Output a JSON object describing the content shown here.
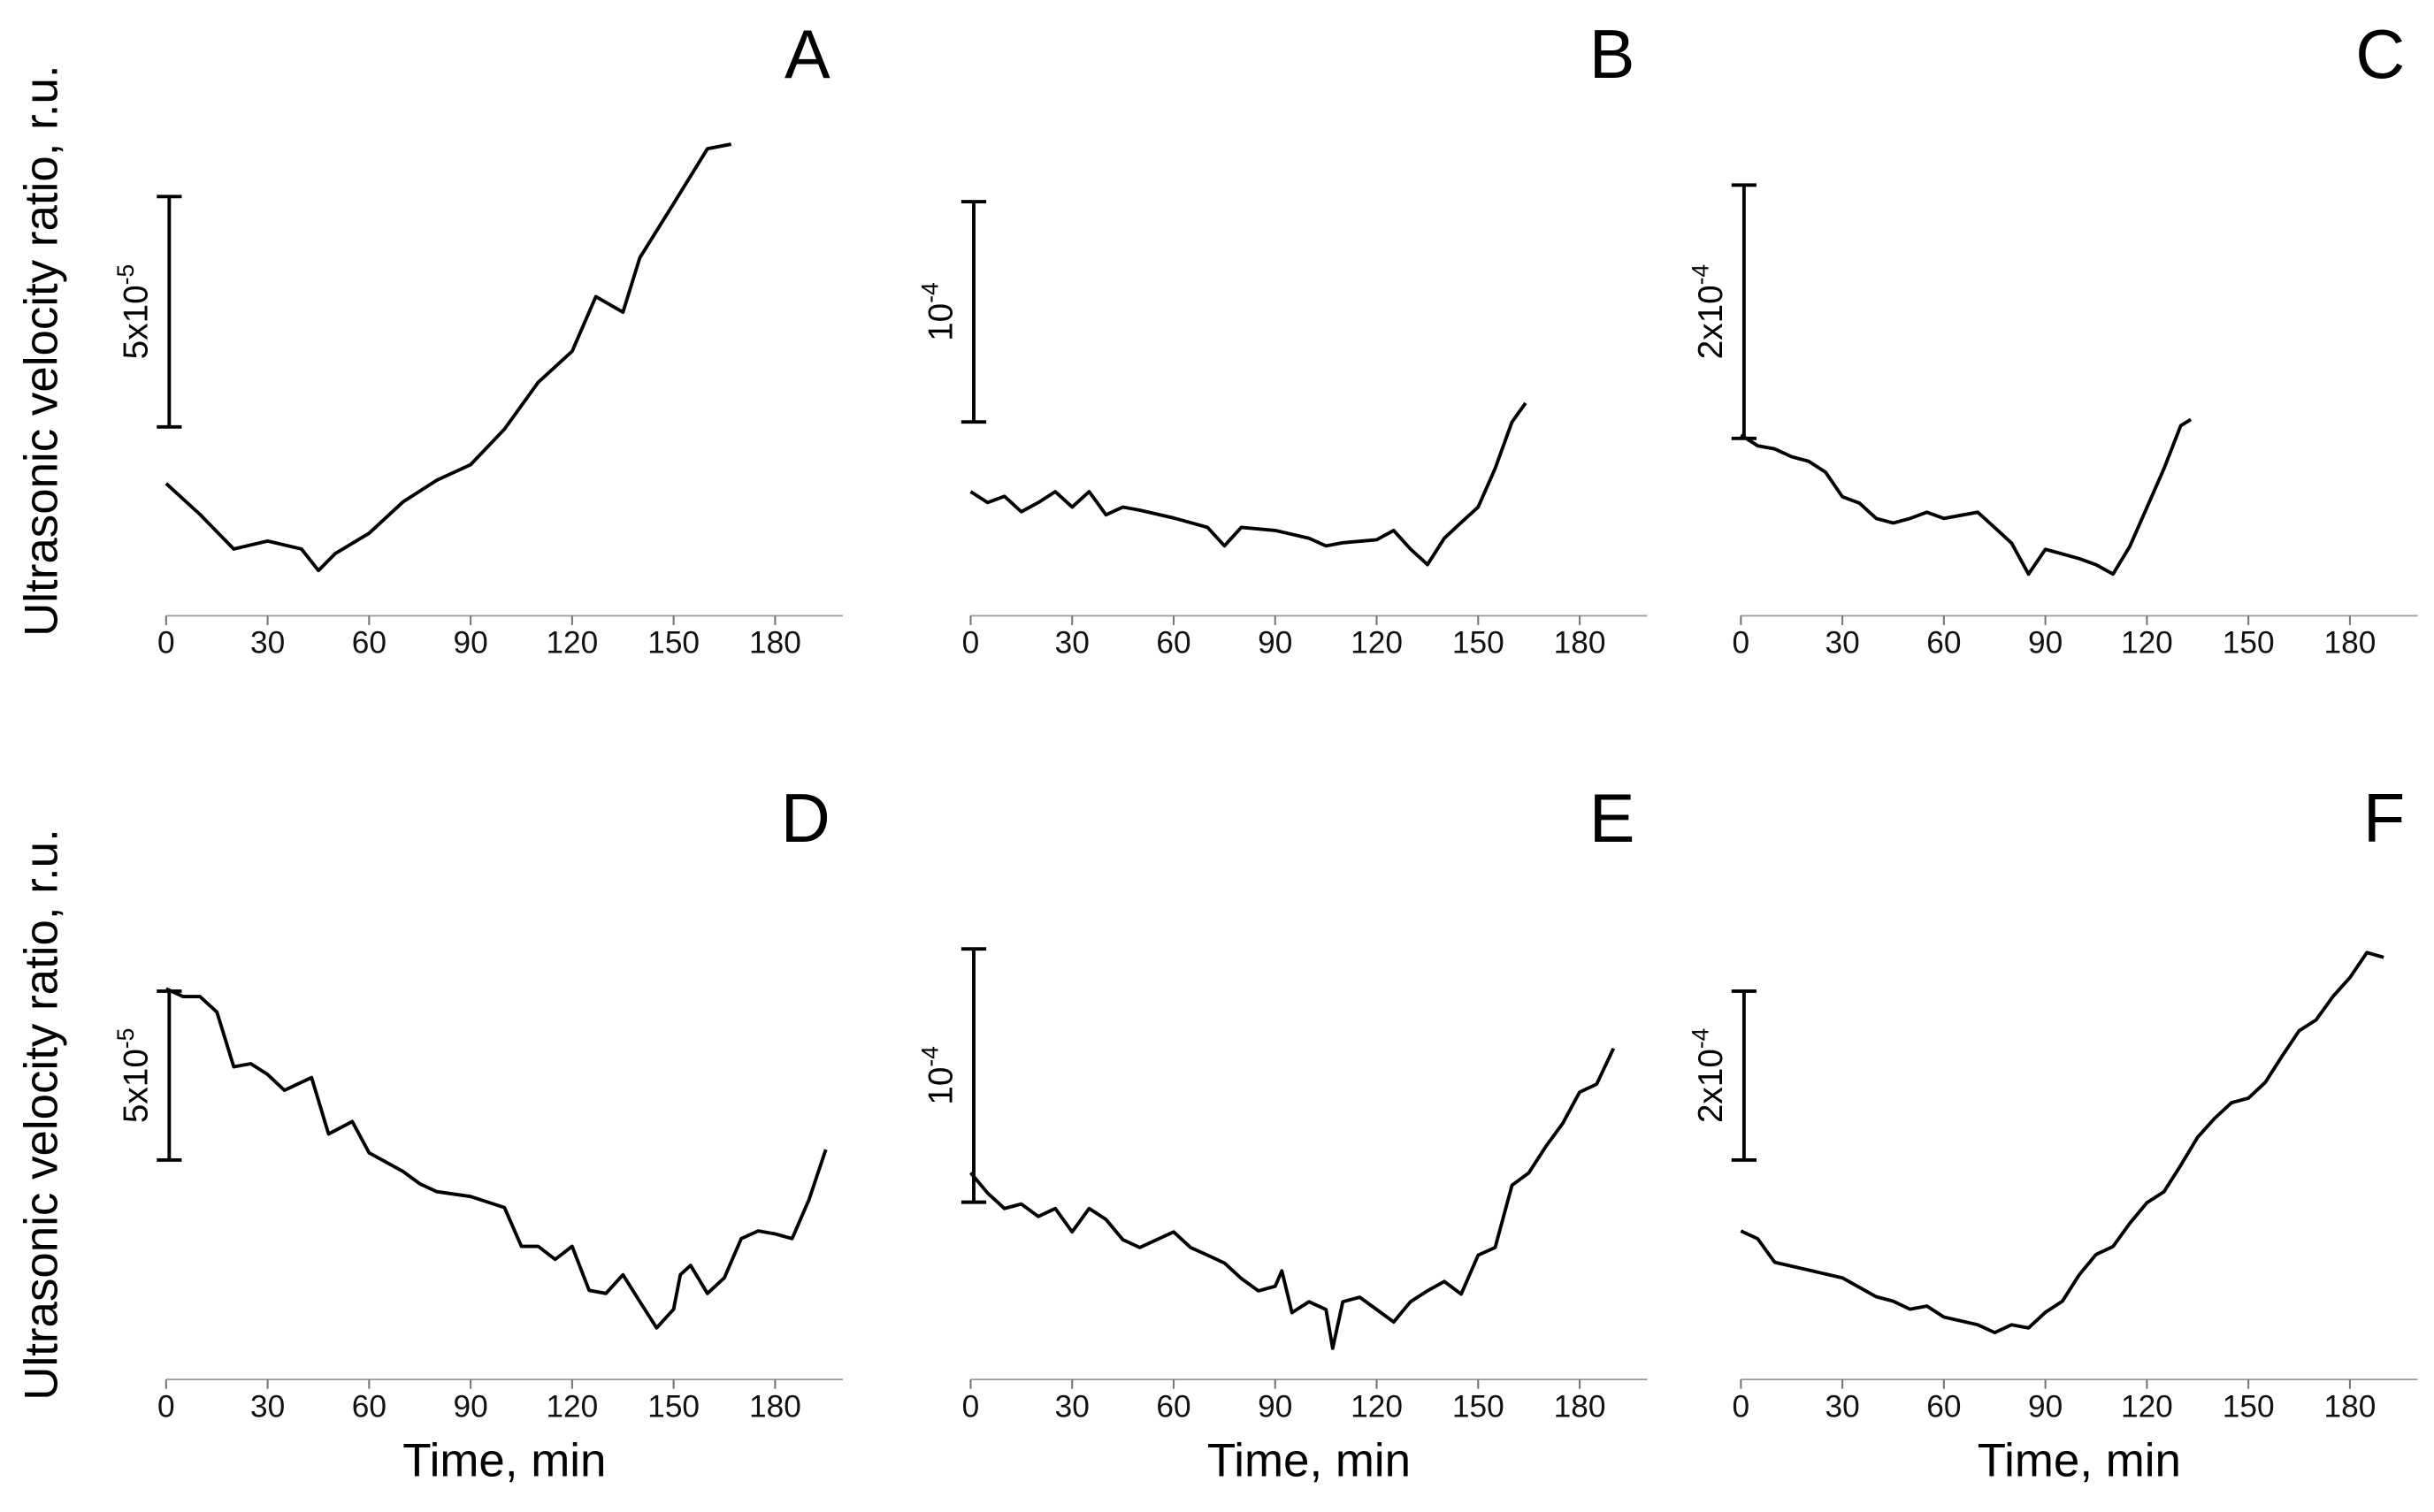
{
  "chart_data": [
    {
      "type": "line",
      "panel_label": "A",
      "ylabel": "Ultrasonic velocity ratio, r.u.",
      "color": "#000000",
      "x": [
        0,
        10,
        20,
        30,
        40,
        45,
        50,
        60,
        70,
        80,
        90,
        100,
        110,
        120,
        127,
        135,
        140,
        150,
        160,
        167
      ],
      "values": [
        2.87e-05,
        2.2e-05,
        1.45e-05,
        1.62e-05,
        1.45e-05,
        9.8e-06,
        1.35e-05,
        1.79e-05,
        2.47e-05,
        2.94e-05,
        3.28e-05,
        4.05e-05,
        5.07e-05,
        5.74e-05,
        6.93e-05,
        6.59e-05,
        7.77e-05,
        8.95e-05,
        0.0001014,
        0.0001024
      ],
      "xlim": [
        0,
        200
      ],
      "xticks": [
        0,
        30,
        60,
        90,
        120,
        150,
        180
      ],
      "ylim": [
        0,
        0.00011
      ],
      "scale_bar": {
        "value": 5e-05,
        "label": "5x10",
        "exponent": "-5"
      }
    },
    {
      "type": "line",
      "panel_label": "B",
      "color": "#000000",
      "x": [
        0,
        5,
        10,
        15,
        20,
        25,
        30,
        35,
        40,
        45,
        50,
        60,
        70,
        75,
        80,
        90,
        100,
        105,
        110,
        120,
        125,
        130,
        135,
        140,
        145,
        150,
        155,
        160,
        164
      ],
      "values": [
        5.63e-05,
        5.14e-05,
        5.42e-05,
        4.72e-05,
        5.14e-05,
        5.63e-05,
        4.93e-05,
        5.63e-05,
        4.58e-05,
        4.93e-05,
        4.79e-05,
        4.44e-05,
        4.01e-05,
        3.17e-05,
        4.01e-05,
        3.87e-05,
        3.52e-05,
        3.17e-05,
        3.31e-05,
        3.45e-05,
        3.87e-05,
        3.03e-05,
        2.32e-05,
        3.52e-05,
        4.23e-05,
        4.93e-05,
        6.69e-05,
        8.8e-05,
        9.65e-05
      ],
      "xlim": [
        0,
        200
      ],
      "xticks": [
        0,
        30,
        60,
        90,
        120,
        150,
        180
      ],
      "ylim": [
        0,
        0.00023
      ],
      "scale_bar": {
        "value": 0.0001,
        "label": "10",
        "exponent": "-4"
      }
    },
    {
      "type": "line",
      "panel_label": "C",
      "color": "#000000",
      "x": [
        0,
        5,
        10,
        15,
        20,
        25,
        30,
        35,
        40,
        45,
        50,
        55,
        60,
        65,
        70,
        75,
        80,
        85,
        90,
        95,
        100,
        105,
        110,
        115,
        120,
        125,
        130,
        133
      ],
      "values": [
        0.0001427,
        0.0001341,
        0.0001317,
        0.0001256,
        0.000122,
        0.0001134,
        9.39e-05,
        8.9e-05,
        7.68e-05,
        7.32e-05,
        7.68e-05,
        8.17e-05,
        7.68e-05,
        7.93e-05,
        8.17e-05,
        6.95e-05,
        5.73e-05,
        3.29e-05,
        5.24e-05,
        4.88e-05,
        4.51e-05,
        4.02e-05,
        3.29e-05,
        5.49e-05,
        8.54e-05,
        0.0001159,
        0.00015,
        0.0001549
      ],
      "xlim": [
        0,
        200
      ],
      "xticks": [
        0,
        30,
        60,
        90,
        120,
        150,
        180
      ],
      "ylim": [
        0,
        0.0004
      ],
      "scale_bar": {
        "value": 0.0002,
        "label": "2x10",
        "exponent": "-4"
      }
    },
    {
      "type": "line",
      "panel_label": "D",
      "ylabel": "Ultrasonic velocity ratio, r.u.",
      "xlabel": "Time, min",
      "color": "#000000",
      "x": [
        0,
        5,
        10,
        15,
        20,
        25,
        30,
        35,
        40,
        43,
        48,
        55,
        60,
        70,
        75,
        80,
        90,
        100,
        105,
        110,
        115,
        120,
        125,
        130,
        135,
        140,
        145,
        150,
        152,
        155,
        160,
        165,
        170,
        175,
        180,
        185,
        190,
        195
      ],
      "values": [
        0.0001157,
        0.0001134,
        0.0001134,
        0.0001088,
        9.26e-05,
        9.35e-05,
        9.03e-05,
        8.56e-05,
        8.8e-05,
        8.94e-05,
        7.27e-05,
        7.64e-05,
        6.71e-05,
        6.16e-05,
        5.79e-05,
        5.56e-05,
        5.42e-05,
        5.09e-05,
        3.94e-05,
        3.94e-05,
        3.56e-05,
        3.94e-05,
        2.64e-05,
        2.55e-05,
        3.1e-05,
        2.31e-05,
        1.53e-05,
        2.08e-05,
        3.1e-05,
        3.38e-05,
        2.55e-05,
        3.01e-05,
        4.17e-05,
        4.4e-05,
        4.31e-05,
        4.17e-05,
        5.32e-05,
        6.81e-05
      ],
      "xlim": [
        0,
        200
      ],
      "xticks": [
        0,
        30,
        60,
        90,
        120,
        150,
        180
      ],
      "ylim": [
        0,
        0.00015
      ],
      "scale_bar": {
        "value": 5e-05,
        "label": "5x10",
        "exponent": "-5"
      }
    },
    {
      "type": "line",
      "panel_label": "E",
      "xlabel": "Time, min",
      "color": "#000000",
      "x": [
        0,
        5,
        10,
        15,
        20,
        25,
        30,
        35,
        40,
        45,
        50,
        55,
        60,
        65,
        70,
        75,
        80,
        85,
        90,
        92,
        95,
        100,
        105,
        107,
        110,
        115,
        120,
        125,
        130,
        135,
        140,
        145,
        150,
        155,
        160,
        165,
        170,
        175,
        180,
        185,
        190
      ],
      "values": [
        8.16e-05,
        7.36e-05,
        6.75e-05,
        6.93e-05,
        6.44e-05,
        6.75e-05,
        5.83e-05,
        6.75e-05,
        6.32e-05,
        5.52e-05,
        5.21e-05,
        5.52e-05,
        5.83e-05,
        5.21e-05,
        4.91e-05,
        4.6e-05,
        3.99e-05,
        3.5e-05,
        3.68e-05,
        4.29e-05,
        2.64e-05,
        3.07e-05,
        2.76e-05,
        1.23e-05,
        3.07e-05,
        3.25e-05,
        2.76e-05,
        2.27e-05,
        3.07e-05,
        3.5e-05,
        3.87e-05,
        3.37e-05,
        4.91e-05,
        5.21e-05,
        7.67e-05,
        8.16e-05,
        9.2e-05,
        0.0001012,
        0.0001135,
        0.0001166,
        0.0001307
      ],
      "xlim": [
        0,
        200
      ],
      "xticks": [
        0,
        30,
        60,
        90,
        120,
        150,
        180
      ],
      "ylim": [
        0,
        0.0002
      ],
      "scale_bar": {
        "value": 0.0001,
        "label": "10",
        "exponent": "-4"
      }
    },
    {
      "type": "line",
      "panel_label": "F",
      "xlabel": "Time, min",
      "color": "#000000",
      "x": [
        0,
        5,
        10,
        20,
        30,
        40,
        45,
        50,
        55,
        60,
        70,
        75,
        80,
        85,
        90,
        95,
        100,
        105,
        110,
        115,
        120,
        125,
        130,
        135,
        140,
        145,
        150,
        155,
        160,
        165,
        170,
        175,
        180,
        185,
        190
      ],
      "values": [
        0.0001759,
        0.0001667,
        0.0001389,
        0.0001296,
        0.0001204,
        9.81e-05,
        9.26e-05,
        8.33e-05,
        8.7e-05,
        7.41e-05,
        6.48e-05,
        5.56e-05,
        6.48e-05,
        6.11e-05,
        7.96e-05,
        9.26e-05,
        0.0001241,
        0.0001481,
        0.0001574,
        0.0001852,
        0.0002093,
        0.0002222,
        0.0002537,
        0.000287,
        0.0003093,
        0.0003278,
        0.0003333,
        0.0003519,
        0.0003833,
        0.000413,
        0.0004259,
        0.0004537,
        0.0004759,
        0.0005056,
        0.0005
      ],
      "xlim": [
        0,
        200
      ],
      "xticks": [
        0,
        30,
        60,
        90,
        120,
        150,
        180
      ],
      "ylim": [
        0,
        0.0006
      ],
      "scale_bar": {
        "value": 0.0002,
        "label": "2x10",
        "exponent": "-4"
      }
    }
  ]
}
